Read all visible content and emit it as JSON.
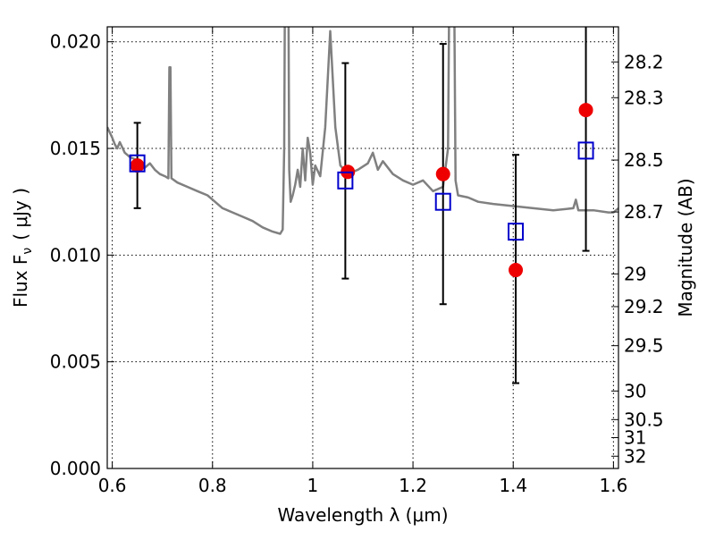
{
  "chart_data": {
    "type": "scatter",
    "xlabel": "Wavelength  λ (μm)",
    "ylabel": "Flux  F",
    "ylabel_sub": "ν",
    "ylabel_unit": "( μJy )",
    "y2label": "Magnitude (AB)",
    "xlim": [
      0.59,
      1.61
    ],
    "ylim": [
      0.0,
      0.0207
    ],
    "xticks": [
      {
        "v": 0.6,
        "label": "0.6"
      },
      {
        "v": 0.8,
        "label": "0.8"
      },
      {
        "v": 1.0,
        "label": "1"
      },
      {
        "v": 1.2,
        "label": "1.2"
      },
      {
        "v": 1.4,
        "label": "1.4"
      },
      {
        "v": 1.6,
        "label": "1.6"
      }
    ],
    "yticks": [
      {
        "v": 0.0,
        "label": "0.000"
      },
      {
        "v": 0.005,
        "label": "0.005"
      },
      {
        "v": 0.01,
        "label": "0.010"
      },
      {
        "v": 0.015,
        "label": "0.015"
      },
      {
        "v": 0.02,
        "label": "0.020"
      }
    ],
    "y2ticks": [
      {
        "mag": 28.2,
        "label": "28.2"
      },
      {
        "mag": 28.3,
        "label": "28.3"
      },
      {
        "mag": 28.5,
        "label": "28.5"
      },
      {
        "mag": 28.7,
        "label": "28.7"
      },
      {
        "mag": 29,
        "label": "29"
      },
      {
        "mag": 29.2,
        "label": "29.2"
      },
      {
        "mag": 29.5,
        "label": "29.5"
      },
      {
        "mag": 30,
        "label": "30"
      },
      {
        "mag": 30.5,
        "label": "30.5"
      },
      {
        "mag": 31,
        "label": "31"
      },
      {
        "mag": 32,
        "label": "32"
      }
    ],
    "grid": true,
    "series": [
      {
        "kind": "line",
        "color": "#808080",
        "points": [
          [
            0.59,
            0.016
          ],
          [
            0.6,
            0.0155
          ],
          [
            0.605,
            0.0152
          ],
          [
            0.61,
            0.015
          ],
          [
            0.615,
            0.0153
          ],
          [
            0.625,
            0.0148
          ],
          [
            0.635,
            0.0146
          ],
          [
            0.645,
            0.0145
          ],
          [
            0.655,
            0.0143
          ],
          [
            0.665,
            0.0141
          ],
          [
            0.675,
            0.0143
          ],
          [
            0.685,
            0.014
          ],
          [
            0.695,
            0.0138
          ],
          [
            0.705,
            0.0137
          ],
          [
            0.712,
            0.0136
          ],
          [
            0.714,
            0.0188
          ],
          [
            0.716,
            0.0188
          ],
          [
            0.718,
            0.0136
          ],
          [
            0.73,
            0.0134
          ],
          [
            0.75,
            0.0132
          ],
          [
            0.77,
            0.013
          ],
          [
            0.79,
            0.0128
          ],
          [
            0.8,
            0.0126
          ],
          [
            0.82,
            0.0122
          ],
          [
            0.84,
            0.012
          ],
          [
            0.86,
            0.0118
          ],
          [
            0.88,
            0.0116
          ],
          [
            0.9,
            0.0113
          ],
          [
            0.92,
            0.0111
          ],
          [
            0.935,
            0.011
          ],
          [
            0.94,
            0.0112
          ],
          [
            0.943,
            0.015
          ],
          [
            0.946,
            0.03
          ],
          [
            0.95,
            0.03
          ],
          [
            0.953,
            0.014
          ],
          [
            0.956,
            0.0125
          ],
          [
            0.96,
            0.0128
          ],
          [
            0.965,
            0.0133
          ],
          [
            0.97,
            0.014
          ],
          [
            0.975,
            0.0132
          ],
          [
            0.98,
            0.015
          ],
          [
            0.985,
            0.0135
          ],
          [
            0.99,
            0.0155
          ],
          [
            0.995,
            0.0148
          ],
          [
            1.0,
            0.0133
          ],
          [
            1.005,
            0.0142
          ],
          [
            1.015,
            0.0137
          ],
          [
            1.025,
            0.016
          ],
          [
            1.035,
            0.0205
          ],
          [
            1.045,
            0.016
          ],
          [
            1.055,
            0.0142
          ],
          [
            1.07,
            0.0138
          ],
          [
            1.09,
            0.014
          ],
          [
            1.11,
            0.0143
          ],
          [
            1.12,
            0.0148
          ],
          [
            1.13,
            0.014
          ],
          [
            1.14,
            0.0144
          ],
          [
            1.16,
            0.0138
          ],
          [
            1.18,
            0.0135
          ],
          [
            1.2,
            0.0133
          ],
          [
            1.22,
            0.0135
          ],
          [
            1.24,
            0.013
          ],
          [
            1.26,
            0.0132
          ],
          [
            1.27,
            0.015
          ],
          [
            1.275,
            0.03
          ],
          [
            1.28,
            0.03
          ],
          [
            1.285,
            0.0135
          ],
          [
            1.29,
            0.0128
          ],
          [
            1.31,
            0.0127
          ],
          [
            1.33,
            0.0125
          ],
          [
            1.36,
            0.0124
          ],
          [
            1.4,
            0.0123
          ],
          [
            1.44,
            0.0122
          ],
          [
            1.48,
            0.0121
          ],
          [
            1.52,
            0.0122
          ],
          [
            1.525,
            0.0126
          ],
          [
            1.53,
            0.0121
          ],
          [
            1.56,
            0.0121
          ],
          [
            1.59,
            0.012
          ],
          [
            1.6,
            0.012
          ],
          [
            1.61,
            0.0122
          ]
        ]
      },
      {
        "kind": "points",
        "marker": "circle",
        "color": "#ee0000",
        "points": [
          [
            0.65,
            0.0142
          ],
          [
            1.07,
            0.0139
          ],
          [
            1.26,
            0.0138
          ],
          [
            1.405,
            0.0093
          ],
          [
            1.545,
            0.0168
          ]
        ]
      },
      {
        "kind": "points",
        "marker": "open-square",
        "color": "#0000cc",
        "points": [
          [
            0.65,
            0.0143
          ],
          [
            1.065,
            0.0135
          ],
          [
            1.26,
            0.0125
          ],
          [
            1.405,
            0.0111
          ],
          [
            1.545,
            0.0149
          ]
        ]
      },
      {
        "kind": "errorbars",
        "color": "#000000",
        "bars": [
          {
            "x": 0.65,
            "low": 0.0122,
            "high": 0.0162
          },
          {
            "x": 1.065,
            "low": 0.0089,
            "high": 0.019
          },
          {
            "x": 1.26,
            "low": 0.0077,
            "high": 0.0199
          },
          {
            "x": 1.405,
            "low": 0.004,
            "high": 0.0147
          },
          {
            "x": 1.545,
            "low": 0.0102,
            "high": 0.021
          }
        ]
      }
    ]
  }
}
